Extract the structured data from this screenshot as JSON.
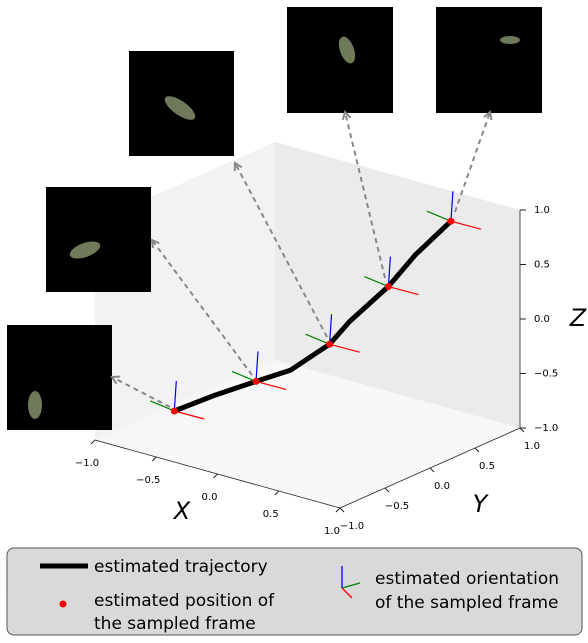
{
  "chart_data": {
    "type": "line3d",
    "xlabel": "X",
    "ylabel": "Y",
    "zlabel": "Z",
    "xlim": [
      -1,
      1
    ],
    "ylim": [
      -1,
      1
    ],
    "zlim": [
      -1,
      1
    ],
    "xticks": [
      {
        "value": -1,
        "label": "−1.0"
      },
      {
        "value": -0.5,
        "label": "−0.5"
      },
      {
        "value": 0,
        "label": "0.0"
      },
      {
        "value": 0.5,
        "label": "0.5"
      },
      {
        "value": 1,
        "label": "1.0"
      }
    ],
    "yticks": [
      {
        "value": -1,
        "label": "−1.0"
      },
      {
        "value": -0.5,
        "label": "−0.5"
      },
      {
        "value": 0,
        "label": "0.0"
      },
      {
        "value": 0.5,
        "label": "0.5"
      },
      {
        "value": 1,
        "label": "1.0"
      }
    ],
    "zticks": [
      {
        "value": -1,
        "label": "−1.0"
      },
      {
        "value": -0.5,
        "label": "−0.5"
      },
      {
        "value": 0,
        "label": "0.0"
      },
      {
        "value": 0.5,
        "label": "0.5"
      },
      {
        "value": 1,
        "label": "1.0"
      }
    ],
    "grid": false,
    "trajectory": {
      "name": "estimated trajectory",
      "color": "#000000",
      "x": [
        -0.72,
        -0.46,
        -0.2,
        -0.03,
        0.18,
        0.27,
        0.44,
        0.55,
        0.73
      ],
      "y": [
        -0.5,
        -0.4,
        -0.3,
        -0.15,
        0,
        0.1,
        0.3,
        0.45,
        0.6
      ],
      "z": [
        -0.83,
        -0.64,
        -0.47,
        -0.37,
        -0.12,
        0.08,
        0.38,
        0.65,
        0.96
      ]
    },
    "sampled": {
      "name": [
        "estimated position of",
        "the sampled frame"
      ],
      "color": "#ff0000",
      "x": [
        -0.72,
        -0.2,
        0.18,
        0.44,
        0.73
      ],
      "y": [
        -0.5,
        -0.3,
        0,
        0.3,
        0.6
      ],
      "z": [
        -0.83,
        -0.47,
        -0.12,
        0.38,
        0.96
      ]
    },
    "orientation": {
      "name": [
        "estimated orientation",
        "of the sampled frame"
      ]
    }
  }
}
